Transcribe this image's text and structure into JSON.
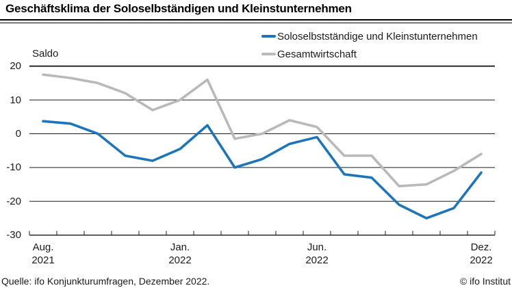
{
  "title": "Geschäftsklima der Soloselbständigen und Kleinstunternehmen",
  "legend": [
    {
      "label": "Soloselbstständige und Kleinstunternehmen",
      "color": "#1b75bc"
    },
    {
      "label": "Gesamtwirtschaft",
      "color": "#b9b9b9"
    }
  ],
  "footer": {
    "source": "Quelle: ifo Konjunkturumfragen, Dezember 2022.",
    "copyright": "© ifo Institut"
  },
  "chart_data": {
    "type": "line",
    "title": "Geschäftsklima der Soloselbständigen und Kleinstunternehmen",
    "ylabel": "Saldo",
    "ylim": [
      -30,
      20
    ],
    "yticks": [
      20,
      10,
      0,
      -10,
      -20,
      -30
    ],
    "grid": true,
    "legend_position": "top",
    "categories": [
      "Aug. 2021",
      "Sep. 2021",
      "Okt. 2021",
      "Nov. 2021",
      "Dez. 2021",
      "Jan. 2022",
      "Feb. 2022",
      "Mär. 2022",
      "Apr. 2022",
      "Mai 2022",
      "Jun. 2022",
      "Jul. 2022",
      "Aug. 2022",
      "Sep. 2022",
      "Okt. 2022",
      "Nov. 2022",
      "Dez. 2022"
    ],
    "x_tick_labels": [
      {
        "index": 0,
        "line1": "Aug.",
        "line2": "2021"
      },
      {
        "index": 5,
        "line1": "Jan.",
        "line2": "2022"
      },
      {
        "index": 10,
        "line1": "Jun.",
        "line2": "2022"
      },
      {
        "index": 16,
        "line1": "Dez.",
        "line2": "2022"
      }
    ],
    "series": [
      {
        "name": "Soloselbstständige und Kleinstunternehmen",
        "color": "#1b75bc",
        "values": [
          3.7,
          3,
          0,
          -6.5,
          -8,
          -4.5,
          2.5,
          -10,
          -7.5,
          -3,
          -1,
          -12,
          -13,
          -21,
          -25,
          -22,
          -11.5
        ]
      },
      {
        "name": "Gesamtwirtschaft",
        "color": "#b9b9b9",
        "values": [
          17.5,
          16.5,
          15,
          12,
          7,
          10,
          16,
          -1.5,
          0,
          4,
          2,
          -6.5,
          -6.5,
          -15.5,
          -15,
          -11,
          -6
        ]
      }
    ]
  }
}
